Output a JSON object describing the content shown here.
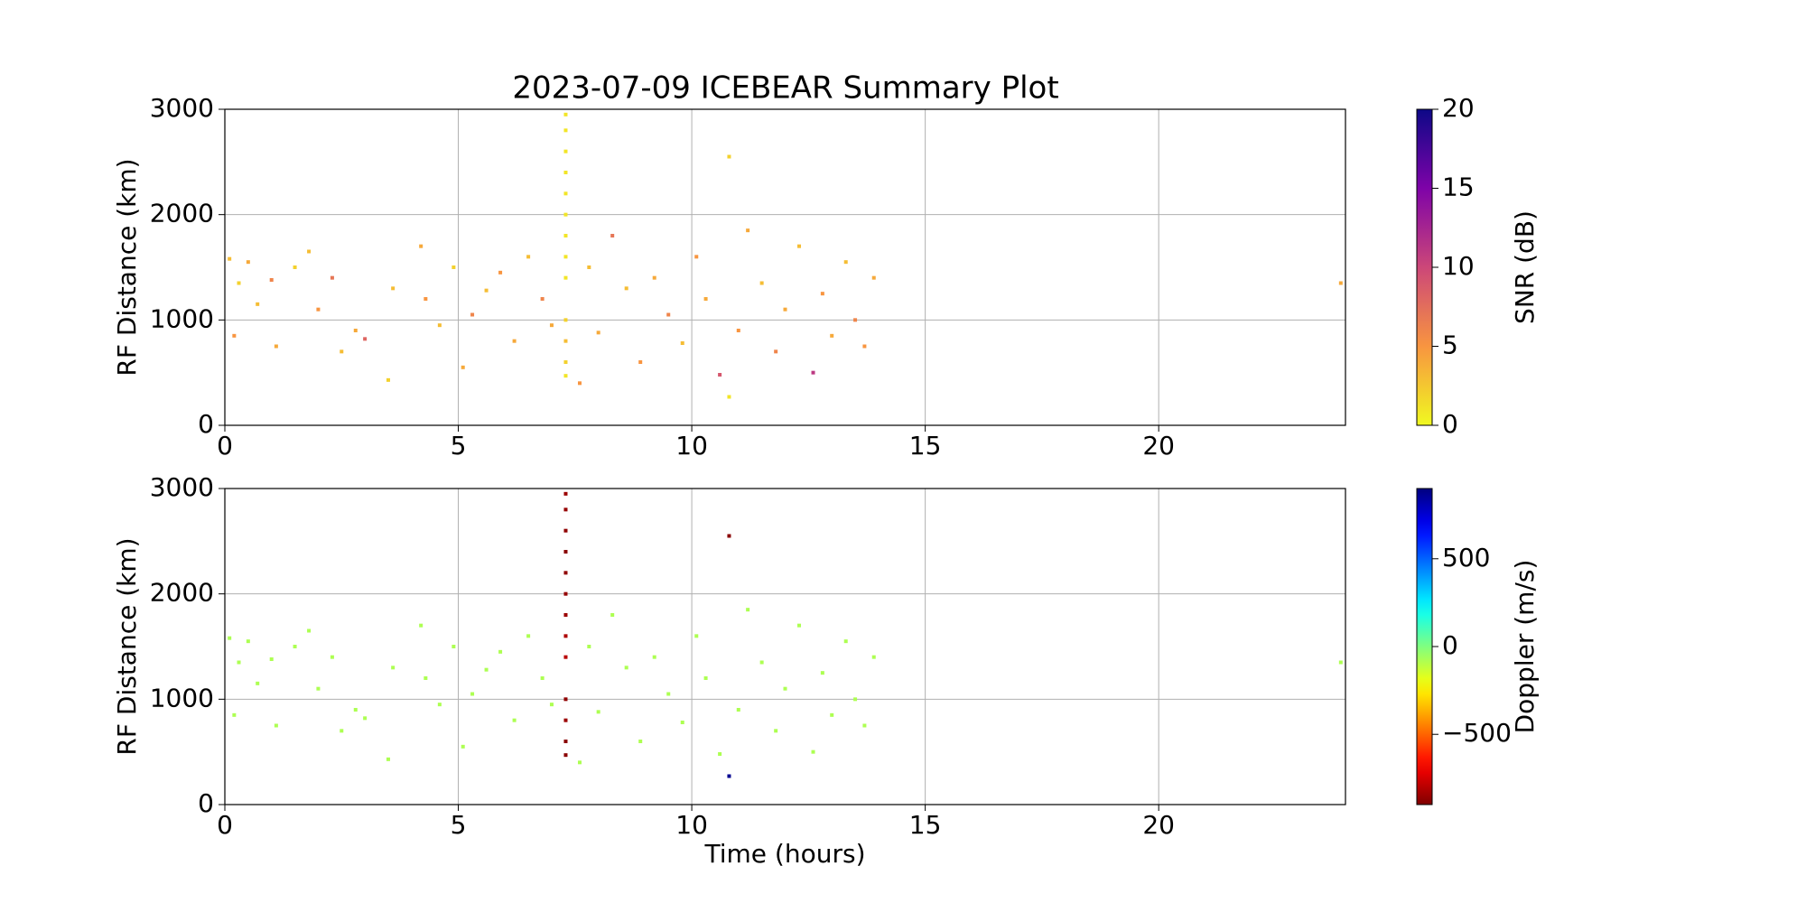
{
  "chart_data": [
    {
      "type": "scatter",
      "title": "2023-07-09 ICEBEAR Summary Plot",
      "ylabel": "RF Distance (km)",
      "x": [
        0.1,
        0.2,
        0.3,
        0.5,
        0.7,
        1.0,
        1.1,
        1.5,
        1.8,
        2.0,
        2.3,
        2.5,
        2.8,
        3.0,
        3.5,
        3.6,
        4.2,
        4.3,
        4.6,
        4.9,
        5.1,
        5.3,
        5.6,
        5.9,
        6.2,
        6.5,
        6.8,
        7.0,
        7.6,
        7.8,
        8.0,
        8.3,
        8.6,
        8.9,
        9.2,
        9.5,
        9.8,
        10.1,
        10.3,
        10.6,
        10.8,
        10.8,
        11.0,
        11.2,
        11.5,
        11.8,
        12.0,
        12.3,
        12.6,
        12.8,
        13.0,
        13.3,
        13.5,
        13.7,
        13.9,
        23.9,
        7.3,
        7.3,
        7.3,
        7.3,
        7.3,
        7.3,
        7.3,
        7.3,
        7.3,
        7.3,
        7.3,
        7.3,
        7.3
      ],
      "y": [
        1580,
        850,
        1350,
        1550,
        1150,
        1380,
        750,
        1500,
        1650,
        1100,
        1400,
        700,
        900,
        820,
        430,
        1300,
        1700,
        1200,
        950,
        1500,
        550,
        1050,
        1280,
        1450,
        800,
        1600,
        1200,
        950,
        400,
        1500,
        880,
        1800,
        1300,
        600,
        1400,
        1050,
        780,
        1600,
        1200,
        480,
        2550,
        270,
        900,
        1850,
        1350,
        700,
        1100,
        1700,
        500,
        1250,
        850,
        1550,
        1000,
        750,
        1400,
        1350,
        470,
        600,
        800,
        1000,
        1400,
        1600,
        1800,
        2000,
        2200,
        2400,
        2600,
        2800,
        2950
      ],
      "c": [
        3,
        5,
        2,
        4,
        3,
        6,
        4,
        2,
        3,
        5,
        7,
        3,
        4,
        8,
        2,
        3,
        4,
        5,
        3,
        2,
        4,
        6,
        3,
        5,
        4,
        3,
        6,
        4,
        5,
        3,
        4,
        7,
        3,
        5,
        4,
        6,
        3,
        5,
        4,
        9,
        2,
        1,
        5,
        4,
        3,
        6,
        4,
        3,
        11,
        5,
        4,
        3,
        6,
        5,
        4,
        4,
        1,
        2,
        3,
        2,
        1,
        1,
        1,
        1,
        1,
        1,
        1,
        1,
        1
      ],
      "xlim": [
        0,
        24
      ],
      "xticks": [
        0,
        5,
        10,
        15,
        20
      ],
      "ylim": [
        0,
        3000
      ],
      "yticks": [
        0,
        1000,
        2000,
        3000
      ],
      "grid": true,
      "colorbar": {
        "label": "SNR (dB)",
        "lim": [
          0,
          20
        ],
        "ticks": [
          0,
          5,
          10,
          15,
          20
        ],
        "colormap": "plasma_r"
      }
    },
    {
      "type": "scatter",
      "ylabel": "RF Distance (km)",
      "xlabel": "Time (hours)",
      "x": [
        0.1,
        0.2,
        0.3,
        0.5,
        0.7,
        1.0,
        1.1,
        1.5,
        1.8,
        2.0,
        2.3,
        2.5,
        2.8,
        3.0,
        3.5,
        3.6,
        4.2,
        4.3,
        4.6,
        4.9,
        5.1,
        5.3,
        5.6,
        5.9,
        6.2,
        6.5,
        6.8,
        7.0,
        7.6,
        7.8,
        8.0,
        8.3,
        8.6,
        8.9,
        9.2,
        9.5,
        9.8,
        10.1,
        10.3,
        10.6,
        10.8,
        10.8,
        11.0,
        11.2,
        11.5,
        11.8,
        12.0,
        12.3,
        12.6,
        12.8,
        13.0,
        13.3,
        13.5,
        13.7,
        13.9,
        23.9,
        7.3,
        7.3,
        7.3,
        7.3,
        7.3,
        7.3,
        7.3,
        7.3,
        7.3,
        7.3,
        7.3,
        7.3,
        7.3
      ],
      "y": [
        1580,
        850,
        1350,
        1550,
        1150,
        1380,
        750,
        1500,
        1650,
        1100,
        1400,
        700,
        900,
        820,
        430,
        1300,
        1700,
        1200,
        950,
        1500,
        550,
        1050,
        1280,
        1450,
        800,
        1600,
        1200,
        950,
        400,
        1500,
        880,
        1800,
        1300,
        600,
        1400,
        1050,
        780,
        1600,
        1200,
        480,
        2550,
        270,
        900,
        1850,
        1350,
        700,
        1100,
        1700,
        500,
        1250,
        850,
        1550,
        1000,
        750,
        1400,
        1350,
        470,
        600,
        800,
        1000,
        1400,
        1600,
        1800,
        2000,
        2200,
        2400,
        2600,
        2800,
        2950
      ],
      "c": [
        -80,
        -80,
        -80,
        -80,
        -80,
        -80,
        -80,
        -80,
        -80,
        -80,
        -80,
        -80,
        -80,
        -80,
        -80,
        -80,
        -80,
        -80,
        -80,
        -80,
        -80,
        -80,
        -80,
        -80,
        -80,
        -80,
        -80,
        -80,
        -80,
        -80,
        -80,
        -80,
        -80,
        -80,
        -80,
        -80,
        -80,
        -80,
        -80,
        -80,
        -880,
        870,
        -80,
        -80,
        -80,
        -80,
        -80,
        -80,
        -80,
        -80,
        -80,
        -80,
        -80,
        -80,
        -80,
        -80,
        -880,
        -880,
        -850,
        -870,
        -800,
        -820,
        -850,
        -860,
        -870,
        -880,
        -870,
        -860,
        -850
      ],
      "xlim": [
        0,
        24
      ],
      "xticks": [
        0,
        5,
        10,
        15,
        20
      ],
      "ylim": [
        0,
        3000
      ],
      "yticks": [
        0,
        1000,
        2000,
        3000
      ],
      "grid": true,
      "colorbar": {
        "label": "Doppler (m/s)",
        "lim": [
          -900,
          900
        ],
        "ticks": [
          {
            "value": -500,
            "label": "−500"
          },
          0,
          500
        ],
        "colormap": "jet_r"
      }
    }
  ]
}
